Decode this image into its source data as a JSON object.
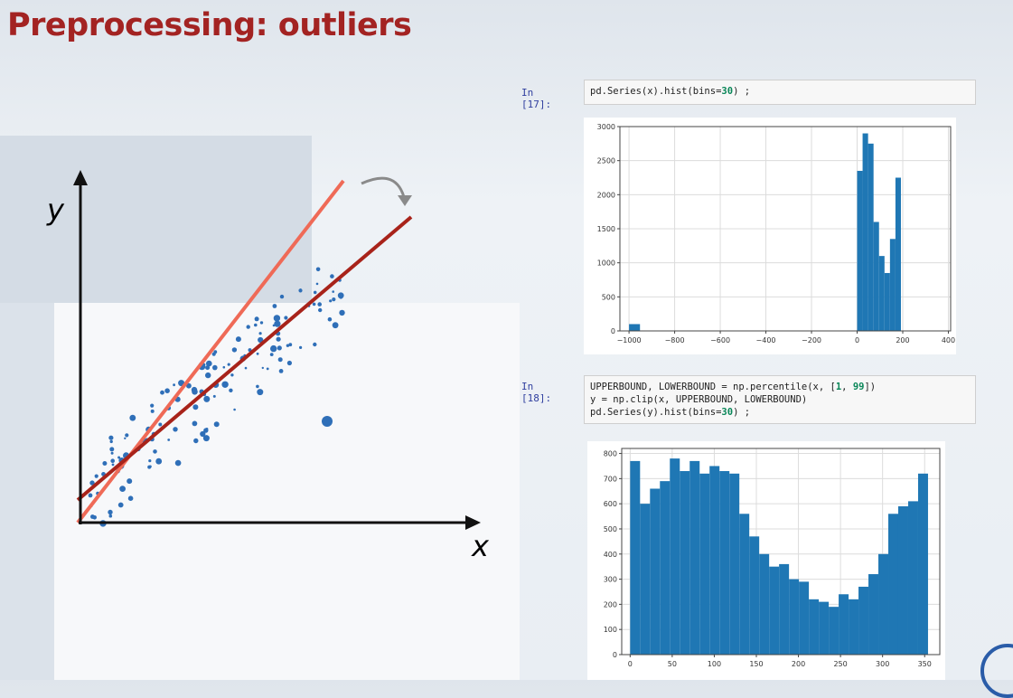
{
  "title": "Preprocessing: outliers",
  "cell17": {
    "prompt": "In [17]:",
    "code": [
      {
        "t": "pd.Series(x).hist(bins="
      },
      {
        "t": "30",
        "n": true
      },
      {
        "t": ") ;"
      }
    ]
  },
  "cell18": {
    "prompt": "In [18]:",
    "code_lines": [
      [
        {
          "t": "UPPERBOUND, LOWERBOUND = np.percentile(x, ["
        },
        {
          "t": "1",
          "n": true
        },
        {
          "t": ", "
        },
        {
          "t": "99",
          "n": true
        },
        {
          "t": "])"
        }
      ],
      [
        {
          "t": "y = np.clip(x, UPPERBOUND, LOWERBOUND)"
        }
      ],
      [
        {
          "t": "pd.Series(y).hist(bins="
        },
        {
          "t": "30",
          "n": true
        },
        {
          "t": ") ;"
        }
      ]
    ]
  },
  "diagram": {
    "y_label": "y",
    "x_label": "x",
    "colors": {
      "axis": "#111111",
      "line_fit_outlier": "#ef6a57",
      "line_fit_true": "#a8231a",
      "points": "#2f6fb8",
      "arrow": "#8a8a8a"
    }
  },
  "chart_data": [
    {
      "type": "bar",
      "bins": 30,
      "xlim": [
        -1040,
        410
      ],
      "ylim": [
        0,
        3000
      ],
      "xticks": [
        "−1000",
        "−800",
        "−600",
        "−400",
        "−200",
        "0",
        "200",
        "400"
      ],
      "xtick_values": [
        -1000,
        -800,
        -600,
        -400,
        -200,
        0,
        200,
        400
      ],
      "yticks": [
        "0",
        "500",
        "1000",
        "1500",
        "2000",
        "2500",
        "3000"
      ],
      "ytick_values": [
        0,
        500,
        1000,
        1500,
        2000,
        2500,
        3000
      ],
      "grid": true,
      "bar_color": "#1f77b4",
      "bins_data": [
        {
          "x0": -1000,
          "x1": -952,
          "value": 100
        },
        {
          "x0": 0,
          "x1": 24,
          "value": 2350
        },
        {
          "x0": 24,
          "x1": 48,
          "value": 2900
        },
        {
          "x0": 48,
          "x1": 72,
          "value": 2750
        },
        {
          "x0": 72,
          "x1": 96,
          "value": 1600
        },
        {
          "x0": 96,
          "x1": 120,
          "value": 1100
        },
        {
          "x0": 120,
          "x1": 144,
          "value": 850
        },
        {
          "x0": 144,
          "x1": 168,
          "value": 1350
        },
        {
          "x0": 168,
          "x1": 192,
          "value": 2250
        }
      ]
    },
    {
      "type": "bar",
      "bins": 30,
      "xlim": [
        -10,
        368
      ],
      "ylim": [
        0,
        820
      ],
      "xticks": [
        "0",
        "50",
        "100",
        "150",
        "200",
        "250",
        "300",
        "350"
      ],
      "xtick_values": [
        0,
        50,
        100,
        150,
        200,
        250,
        300,
        350
      ],
      "yticks": [
        "0",
        "100",
        "200",
        "300",
        "400",
        "500",
        "600",
        "700",
        "800"
      ],
      "ytick_values": [
        0,
        100,
        200,
        300,
        400,
        500,
        600,
        700,
        800
      ],
      "grid": true,
      "bar_color": "#1f77b4",
      "bin_start": 0,
      "bin_width": 11.8,
      "values": [
        770,
        600,
        660,
        690,
        780,
        730,
        770,
        720,
        750,
        730,
        720,
        560,
        470,
        400,
        350,
        360,
        300,
        290,
        220,
        210,
        190,
        240,
        220,
        270,
        320,
        400,
        560,
        590,
        610,
        720
      ]
    }
  ]
}
